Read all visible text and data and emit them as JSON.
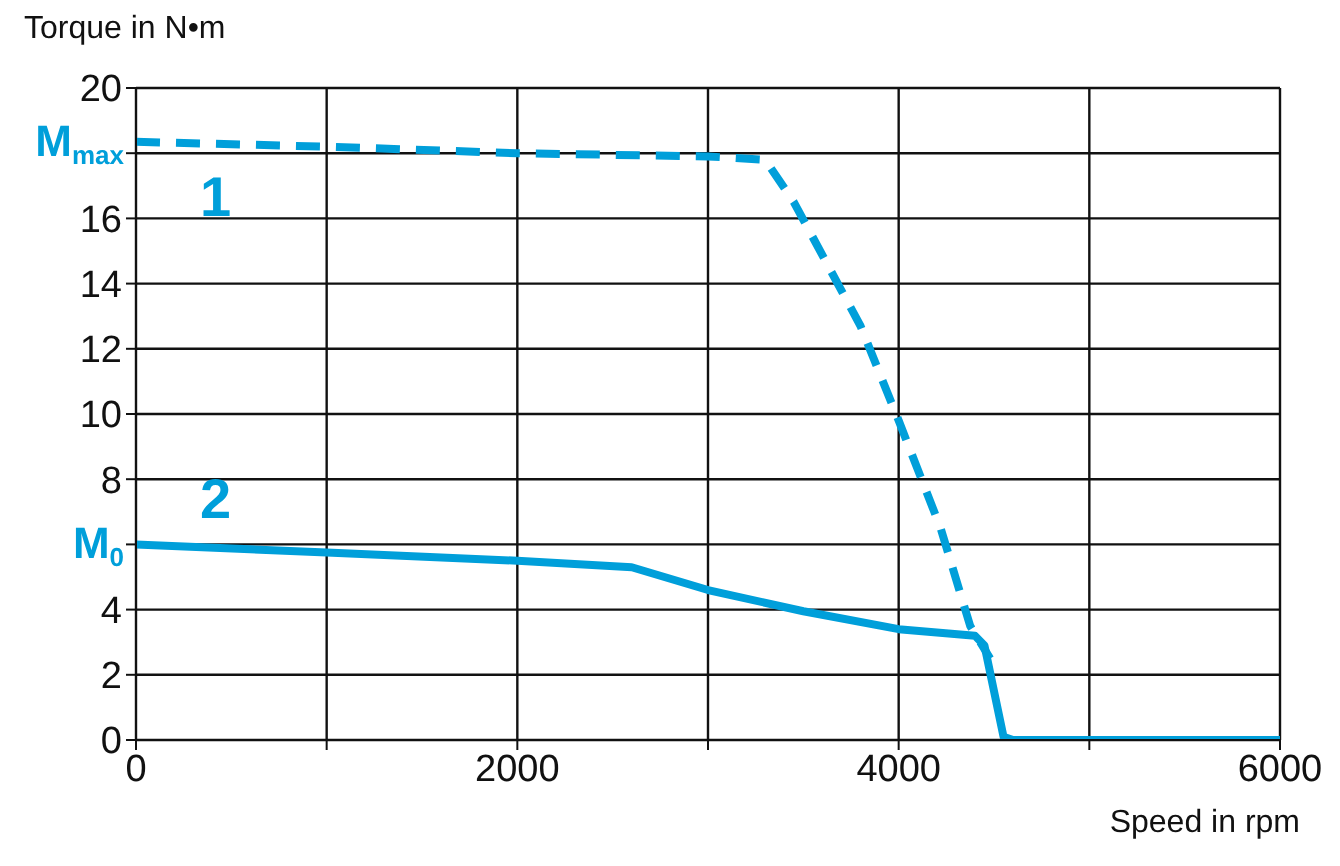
{
  "chart_data": {
    "type": "line",
    "ylabel": "Torque in N•m",
    "xlabel": "Speed in rpm",
    "xlim": [
      0,
      6000
    ],
    "xticks": [
      0,
      {
        "value": 1000,
        "label": null
      },
      2000,
      {
        "value": 3000,
        "label": null
      },
      4000,
      {
        "value": 5000,
        "label": null
      },
      6000
    ],
    "ylim": [
      0,
      20
    ],
    "yticks": [
      0,
      2,
      4,
      {
        "value": 6,
        "label": null
      },
      8,
      10,
      12,
      14,
      16,
      {
        "value": 18,
        "label": null
      },
      20
    ],
    "grid": true,
    "marker": "none",
    "annotations": [
      {
        "text": "M$_{max}$",
        "x": 0,
        "y": 18.35
      },
      {
        "text": "M$_{0}$",
        "x": 0,
        "y": 6
      }
    ],
    "series": [
      {
        "name": "1",
        "color": "#009fda",
        "line_style": "dashed",
        "x": [
          0,
          1000,
          2000,
          3000,
          3300,
          3450,
          3800,
          4000,
          4220,
          4375,
          4480
        ],
        "values": [
          18.35,
          18.2,
          18.0,
          17.9,
          17.8,
          16.5,
          12.7,
          9.8,
          6.5,
          3.5,
          2.5
        ]
      },
      {
        "name": "2",
        "color": "#009fda",
        "line_style": "solid",
        "x": [
          0,
          1000,
          2000,
          2600,
          3000,
          3500,
          4000,
          4400,
          4450,
          4550,
          4600,
          6000
        ],
        "values": [
          6.0,
          5.75,
          5.5,
          5.3,
          4.6,
          3.95,
          3.4,
          3.2,
          2.9,
          0.1,
          0,
          0
        ]
      }
    ]
  }
}
